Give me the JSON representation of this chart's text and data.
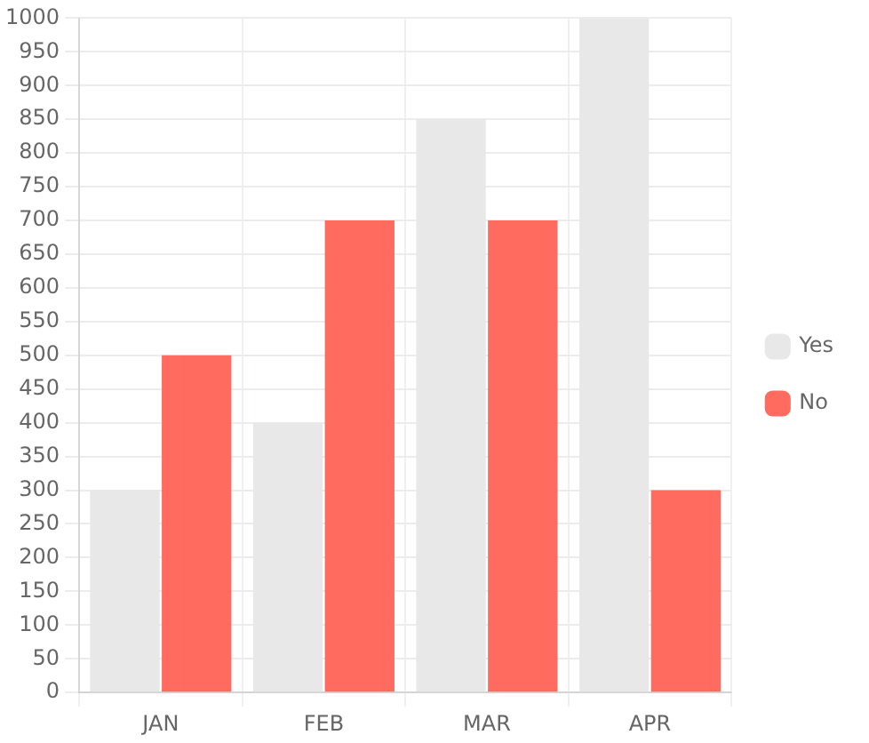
{
  "chart_data": {
    "type": "bar",
    "categories": [
      "JAN",
      "FEB",
      "MAR",
      "APR"
    ],
    "series": [
      {
        "name": "Yes",
        "color": "#e8e8e8",
        "values": [
          300,
          400,
          850,
          1000
        ]
      },
      {
        "name": "No",
        "color": "#ff6b5f",
        "values": [
          500,
          700,
          700,
          300
        ]
      }
    ],
    "ylim": [
      0,
      1000
    ],
    "yticks": [
      0,
      50,
      100,
      150,
      200,
      250,
      300,
      350,
      400,
      450,
      500,
      550,
      600,
      650,
      700,
      750,
      800,
      850,
      900,
      950,
      1000
    ],
    "grid": true,
    "legend": "right"
  }
}
